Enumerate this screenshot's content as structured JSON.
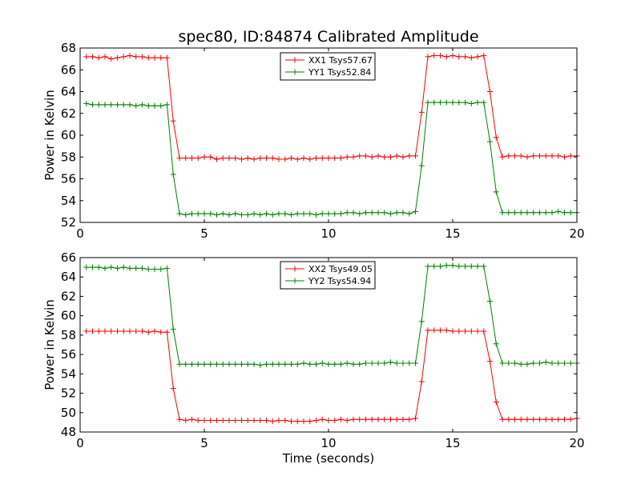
{
  "title": "spec80, ID:84874 Calibrated Amplitude",
  "xlabel": "Time (seconds)",
  "chart_data": [
    {
      "type": "line",
      "ylabel": "Power in Kelvin",
      "xlim": [
        0,
        20
      ],
      "ylim": [
        52,
        68
      ],
      "xticks": [
        0,
        5,
        10,
        15,
        20
      ],
      "yticks": [
        52,
        54,
        56,
        58,
        60,
        62,
        64,
        66,
        68
      ],
      "grid": false,
      "legend": "top-center",
      "series": [
        {
          "name": "XX1 Tsys57.67",
          "color": "#ff0000",
          "x": [
            0.25,
            0.5,
            0.75,
            1.0,
            1.25,
            1.5,
            1.75,
            2.0,
            2.25,
            2.5,
            2.75,
            3.0,
            3.25,
            3.5,
            3.75,
            4.0,
            4.25,
            4.5,
            4.75,
            5.0,
            5.25,
            5.5,
            5.75,
            6.0,
            6.25,
            6.5,
            6.75,
            7.0,
            7.25,
            7.5,
            7.75,
            8.0,
            8.25,
            8.5,
            8.75,
            9.0,
            9.25,
            9.5,
            9.75,
            10.0,
            10.25,
            10.5,
            10.75,
            11.0,
            11.25,
            11.5,
            11.75,
            12.0,
            12.25,
            12.5,
            12.75,
            13.0,
            13.25,
            13.5,
            13.75,
            14.0,
            14.25,
            14.5,
            14.75,
            15.0,
            15.25,
            15.5,
            15.75,
            16.0,
            16.25,
            16.5,
            16.75,
            17.0,
            17.25,
            17.5,
            17.75,
            18.0,
            18.25,
            18.5,
            18.75,
            19.0,
            19.25,
            19.5,
            19.75,
            20.0
          ],
          "y": [
            67.2,
            67.2,
            67.1,
            67.2,
            67.0,
            67.1,
            67.2,
            67.3,
            67.2,
            67.2,
            67.1,
            67.1,
            67.1,
            67.1,
            61.3,
            57.9,
            57.9,
            57.9,
            57.9,
            58.0,
            58.0,
            57.8,
            57.9,
            57.9,
            57.9,
            57.8,
            57.9,
            57.8,
            57.9,
            57.9,
            57.9,
            57.8,
            57.8,
            57.9,
            57.8,
            57.9,
            57.8,
            57.9,
            57.9,
            57.9,
            57.9,
            57.9,
            58.0,
            58.0,
            58.1,
            58.1,
            58.0,
            58.1,
            58.0,
            58.0,
            58.1,
            58.0,
            58.1,
            58.1,
            62.1,
            67.2,
            67.3,
            67.3,
            67.2,
            67.3,
            67.2,
            67.2,
            67.1,
            67.2,
            67.3,
            64.0,
            59.8,
            58.0,
            58.1,
            58.1,
            58.1,
            58.0,
            58.1,
            58.1,
            58.1,
            58.1,
            58.1,
            58.0,
            58.1,
            58.1
          ]
        },
        {
          "name": "YY1 Tsys52.84",
          "color": "#008000",
          "x": [
            0.25,
            0.5,
            0.75,
            1.0,
            1.25,
            1.5,
            1.75,
            2.0,
            2.25,
            2.5,
            2.75,
            3.0,
            3.25,
            3.5,
            3.75,
            4.0,
            4.25,
            4.5,
            4.75,
            5.0,
            5.25,
            5.5,
            5.75,
            6.0,
            6.25,
            6.5,
            6.75,
            7.0,
            7.25,
            7.5,
            7.75,
            8.0,
            8.25,
            8.5,
            8.75,
            9.0,
            9.25,
            9.5,
            9.75,
            10.0,
            10.25,
            10.5,
            10.75,
            11.0,
            11.25,
            11.5,
            11.75,
            12.0,
            12.25,
            12.5,
            12.75,
            13.0,
            13.25,
            13.5,
            13.75,
            14.0,
            14.25,
            14.5,
            14.75,
            15.0,
            15.25,
            15.5,
            15.75,
            16.0,
            16.25,
            16.5,
            16.75,
            17.0,
            17.25,
            17.5,
            17.75,
            18.0,
            18.25,
            18.5,
            18.75,
            19.0,
            19.25,
            19.5,
            19.75,
            20.0
          ],
          "y": [
            62.9,
            62.8,
            62.8,
            62.8,
            62.8,
            62.8,
            62.8,
            62.8,
            62.7,
            62.8,
            62.7,
            62.7,
            62.7,
            62.8,
            56.4,
            52.8,
            52.7,
            52.8,
            52.8,
            52.8,
            52.8,
            52.7,
            52.8,
            52.7,
            52.8,
            52.7,
            52.7,
            52.8,
            52.7,
            52.8,
            52.7,
            52.8,
            52.8,
            52.7,
            52.8,
            52.8,
            52.8,
            52.7,
            52.8,
            52.8,
            52.8,
            52.8,
            52.9,
            52.9,
            52.8,
            52.9,
            52.9,
            52.9,
            52.9,
            52.8,
            52.9,
            52.9,
            52.8,
            53.0,
            57.2,
            63.0,
            63.0,
            63.0,
            63.0,
            63.0,
            63.0,
            63.0,
            62.9,
            63.0,
            63.0,
            59.4,
            54.8,
            52.9,
            52.9,
            52.9,
            52.9,
            52.9,
            52.9,
            52.9,
            52.9,
            52.9,
            53.0,
            52.9,
            52.9,
            52.9
          ]
        }
      ]
    },
    {
      "type": "line",
      "ylabel": "Power in Kelvin",
      "xlim": [
        0,
        20
      ],
      "ylim": [
        48,
        66
      ],
      "xticks": [
        0,
        5,
        10,
        15,
        20
      ],
      "yticks": [
        48,
        50,
        52,
        54,
        56,
        58,
        60,
        62,
        64,
        66
      ],
      "grid": false,
      "legend": "top-center",
      "series": [
        {
          "name": "XX2 Tsys49.05",
          "color": "#ff0000",
          "x": [
            0.25,
            0.5,
            0.75,
            1.0,
            1.25,
            1.5,
            1.75,
            2.0,
            2.25,
            2.5,
            2.75,
            3.0,
            3.25,
            3.5,
            3.75,
            4.0,
            4.25,
            4.5,
            4.75,
            5.0,
            5.25,
            5.5,
            5.75,
            6.0,
            6.25,
            6.5,
            6.75,
            7.0,
            7.25,
            7.5,
            7.75,
            8.0,
            8.25,
            8.5,
            8.75,
            9.0,
            9.25,
            9.5,
            9.75,
            10.0,
            10.25,
            10.5,
            10.75,
            11.0,
            11.25,
            11.5,
            11.75,
            12.0,
            12.25,
            12.5,
            12.75,
            13.0,
            13.25,
            13.5,
            13.75,
            14.0,
            14.25,
            14.5,
            14.75,
            15.0,
            15.25,
            15.5,
            15.75,
            16.0,
            16.25,
            16.5,
            16.75,
            17.0,
            17.25,
            17.5,
            17.75,
            18.0,
            18.25,
            18.5,
            18.75,
            19.0,
            19.25,
            19.5,
            19.75,
            20.0
          ],
          "y": [
            58.4,
            58.4,
            58.4,
            58.4,
            58.4,
            58.4,
            58.4,
            58.4,
            58.4,
            58.4,
            58.3,
            58.4,
            58.3,
            58.3,
            52.5,
            49.3,
            49.2,
            49.3,
            49.2,
            49.2,
            49.2,
            49.2,
            49.2,
            49.2,
            49.2,
            49.2,
            49.2,
            49.2,
            49.2,
            49.2,
            49.1,
            49.2,
            49.2,
            49.1,
            49.1,
            49.1,
            49.1,
            49.2,
            49.3,
            49.2,
            49.2,
            49.3,
            49.2,
            49.3,
            49.3,
            49.3,
            49.3,
            49.3,
            49.3,
            49.3,
            49.3,
            49.3,
            49.3,
            49.4,
            53.2,
            58.5,
            58.5,
            58.5,
            58.5,
            58.4,
            58.4,
            58.4,
            58.4,
            58.4,
            58.4,
            55.3,
            51.1,
            49.3,
            49.3,
            49.3,
            49.3,
            49.3,
            49.3,
            49.3,
            49.3,
            49.3,
            49.3,
            49.3,
            49.3,
            49.4
          ]
        },
        {
          "name": "YY2 Tsys54.94",
          "color": "#008000",
          "x": [
            0.25,
            0.5,
            0.75,
            1.0,
            1.25,
            1.5,
            1.75,
            2.0,
            2.25,
            2.5,
            2.75,
            3.0,
            3.25,
            3.5,
            3.75,
            4.0,
            4.25,
            4.5,
            4.75,
            5.0,
            5.25,
            5.5,
            5.75,
            6.0,
            6.25,
            6.5,
            6.75,
            7.0,
            7.25,
            7.5,
            7.75,
            8.0,
            8.25,
            8.5,
            8.75,
            9.0,
            9.25,
            9.5,
            9.75,
            10.0,
            10.25,
            10.5,
            10.75,
            11.0,
            11.25,
            11.5,
            11.75,
            12.0,
            12.25,
            12.5,
            12.75,
            13.0,
            13.25,
            13.5,
            13.75,
            14.0,
            14.25,
            14.5,
            14.75,
            15.0,
            15.25,
            15.5,
            15.75,
            16.0,
            16.25,
            16.5,
            16.75,
            17.0,
            17.25,
            17.5,
            17.75,
            18.0,
            18.25,
            18.5,
            18.75,
            19.0,
            19.25,
            19.5,
            19.75,
            20.0
          ],
          "y": [
            65.0,
            65.0,
            65.0,
            64.9,
            65.0,
            64.9,
            65.0,
            64.9,
            64.9,
            64.9,
            64.8,
            64.8,
            64.8,
            64.9,
            58.6,
            55.0,
            55.0,
            55.0,
            55.0,
            55.0,
            55.0,
            55.0,
            55.0,
            55.0,
            55.0,
            55.0,
            55.0,
            55.0,
            54.9,
            55.0,
            55.0,
            55.0,
            55.0,
            55.0,
            55.0,
            55.1,
            55.0,
            55.0,
            55.1,
            55.0,
            55.0,
            55.0,
            55.1,
            55.0,
            55.0,
            55.1,
            55.1,
            55.1,
            55.1,
            55.2,
            55.1,
            55.1,
            55.1,
            55.1,
            59.4,
            65.1,
            65.1,
            65.1,
            65.2,
            65.2,
            65.1,
            65.1,
            65.1,
            65.1,
            65.1,
            61.5,
            57.1,
            55.1,
            55.1,
            55.1,
            55.0,
            55.0,
            55.1,
            55.1,
            55.2,
            55.1,
            55.1,
            55.1,
            55.1,
            55.1
          ]
        }
      ]
    }
  ]
}
